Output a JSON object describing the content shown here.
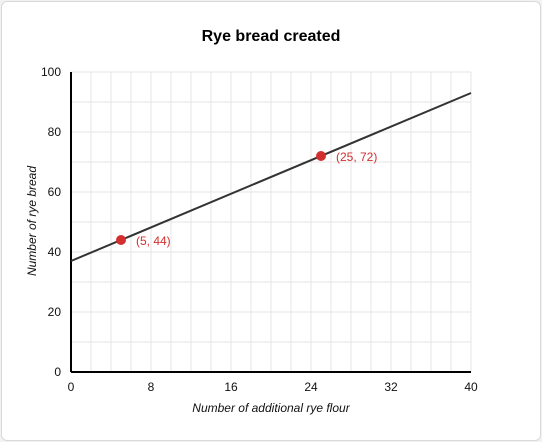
{
  "chart_data": {
    "type": "line",
    "title": "Rye bread created",
    "xlabel": "Number of additional rye flour",
    "ylabel": "Number of rye bread",
    "xlim": [
      0,
      40
    ],
    "ylim": [
      0,
      100
    ],
    "xticks": [
      0,
      8,
      16,
      24,
      32,
      40
    ],
    "yticks": [
      0,
      20,
      40,
      60,
      80,
      100
    ],
    "grid": true,
    "line": {
      "x": [
        0,
        40
      ],
      "y": [
        37,
        93
      ]
    },
    "points": [
      {
        "x": 5,
        "y": 44,
        "label": "(5, 44)"
      },
      {
        "x": 25,
        "y": 72,
        "label": "(25, 72)"
      }
    ],
    "colors": {
      "line": "#333333",
      "points": "#d32f2f",
      "point_labels": "#d32f2f",
      "grid": "#e6e6e6",
      "axis": "#000000"
    }
  }
}
